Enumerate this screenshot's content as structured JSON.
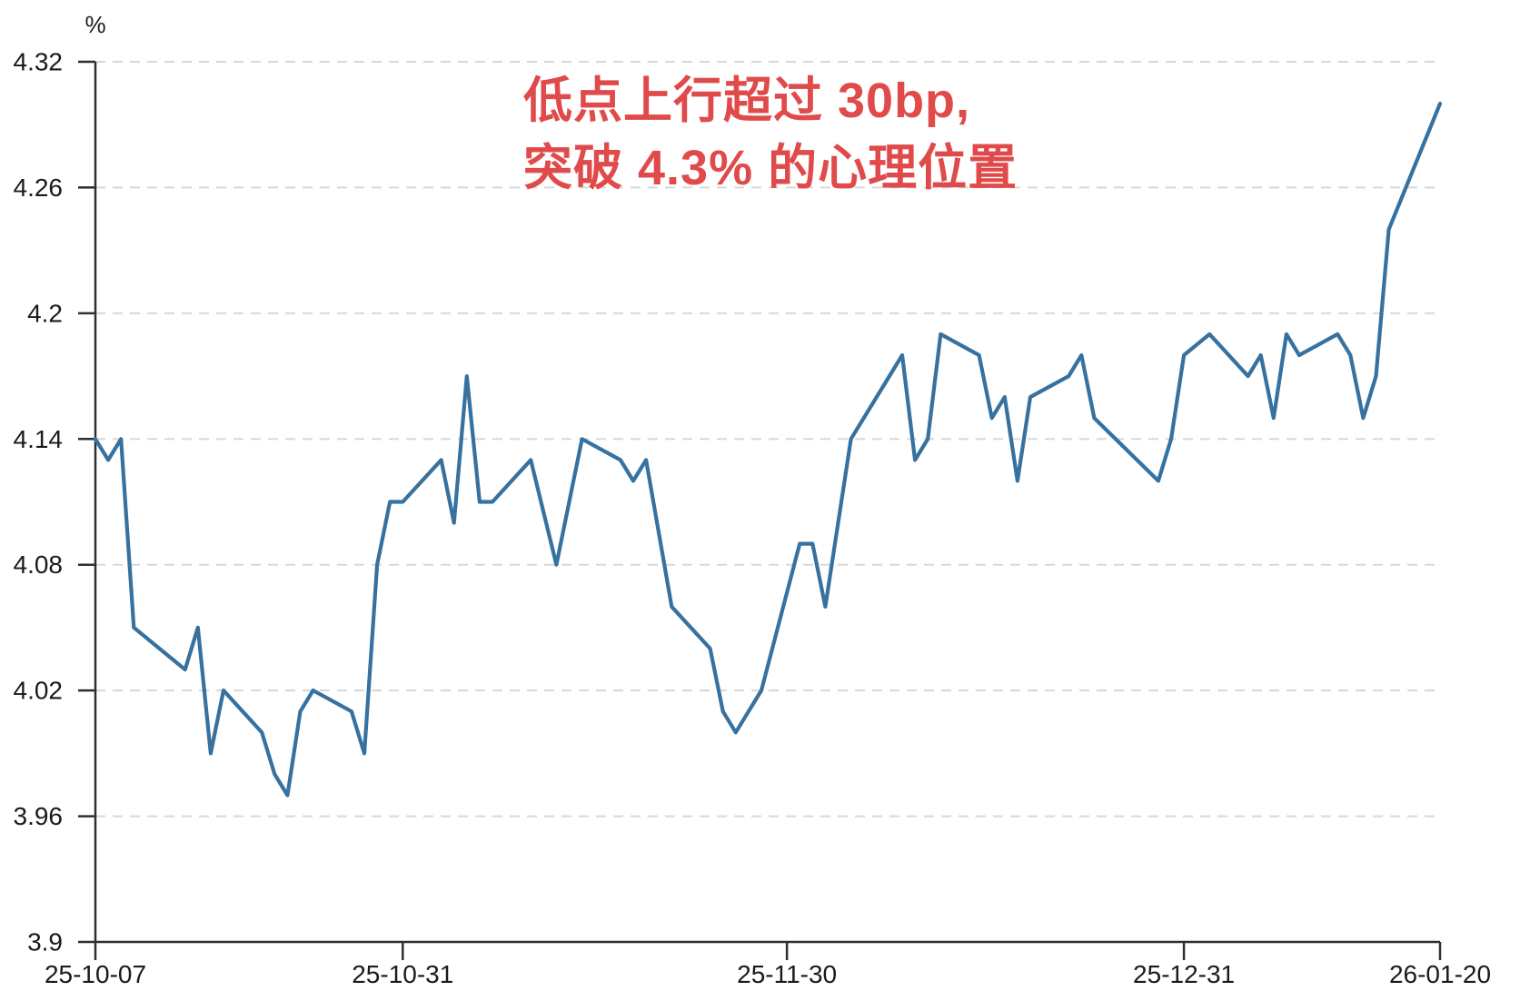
{
  "chart_data": {
    "type": "line",
    "title": "",
    "unit_label": "%",
    "line_color": "#36719F",
    "grid_color": "#d8d8d8",
    "axis_color": "#2f2f2f",
    "ylim": [
      3.9,
      4.32
    ],
    "grid": "dashed-horizontal",
    "y_ticks": [
      {
        "label": "4.32",
        "v": 4.32
      },
      {
        "label": "4.26",
        "v": 4.26
      },
      {
        "label": "4.2",
        "v": 4.2
      },
      {
        "label": "4.14",
        "v": 4.14
      },
      {
        "label": "4.08",
        "v": 4.08
      },
      {
        "label": "4.02",
        "v": 4.02
      },
      {
        "label": "3.96",
        "v": 3.96
      },
      {
        "label": "3.9",
        "v": 3.9
      }
    ],
    "x_ticks": [
      {
        "label": "25-10-07",
        "d": 0
      },
      {
        "label": "25-10-31",
        "d": 24
      },
      {
        "label": "25-11-30",
        "d": 54
      },
      {
        "label": "25-12-31",
        "d": 85
      },
      {
        "label": "26-01-20",
        "d": 105
      }
    ],
    "x_axis_note": "d = calendar days since 2025-10-07; weekends/holidays bridged by straight segments",
    "points": [
      {
        "d": 0,
        "v": 4.14
      },
      {
        "d": 1,
        "v": 4.13
      },
      {
        "d": 2,
        "v": 4.14
      },
      {
        "d": 3,
        "v": 4.05
      },
      {
        "d": 7,
        "v": 4.03
      },
      {
        "d": 8,
        "v": 4.05
      },
      {
        "d": 9,
        "v": 3.99
      },
      {
        "d": 10,
        "v": 4.02
      },
      {
        "d": 13,
        "v": 4.0
      },
      {
        "d": 14,
        "v": 3.98
      },
      {
        "d": 15,
        "v": 3.97
      },
      {
        "d": 16,
        "v": 4.01
      },
      {
        "d": 17,
        "v": 4.02
      },
      {
        "d": 20,
        "v": 4.01
      },
      {
        "d": 21,
        "v": 3.99
      },
      {
        "d": 22,
        "v": 4.08
      },
      {
        "d": 23,
        "v": 4.11
      },
      {
        "d": 24,
        "v": 4.11
      },
      {
        "d": 27,
        "v": 4.13
      },
      {
        "d": 28,
        "v": 4.1
      },
      {
        "d": 29,
        "v": 4.17
      },
      {
        "d": 30,
        "v": 4.11
      },
      {
        "d": 31,
        "v": 4.11
      },
      {
        "d": 34,
        "v": 4.13
      },
      {
        "d": 36,
        "v": 4.08
      },
      {
        "d": 38,
        "v": 4.14
      },
      {
        "d": 41,
        "v": 4.13
      },
      {
        "d": 42,
        "v": 4.12
      },
      {
        "d": 43,
        "v": 4.13
      },
      {
        "d": 45,
        "v": 4.06
      },
      {
        "d": 48,
        "v": 4.04
      },
      {
        "d": 49,
        "v": 4.01
      },
      {
        "d": 50,
        "v": 4.0
      },
      {
        "d": 52,
        "v": 4.02
      },
      {
        "d": 55,
        "v": 4.09
      },
      {
        "d": 56,
        "v": 4.09
      },
      {
        "d": 57,
        "v": 4.06
      },
      {
        "d": 59,
        "v": 4.14
      },
      {
        "d": 62,
        "v": 4.17
      },
      {
        "d": 63,
        "v": 4.18
      },
      {
        "d": 64,
        "v": 4.13
      },
      {
        "d": 65,
        "v": 4.14
      },
      {
        "d": 66,
        "v": 4.19
      },
      {
        "d": 69,
        "v": 4.18
      },
      {
        "d": 70,
        "v": 4.15
      },
      {
        "d": 71,
        "v": 4.16
      },
      {
        "d": 72,
        "v": 4.12
      },
      {
        "d": 73,
        "v": 4.16
      },
      {
        "d": 76,
        "v": 4.17
      },
      {
        "d": 77,
        "v": 4.18
      },
      {
        "d": 78,
        "v": 4.15
      },
      {
        "d": 83,
        "v": 4.12
      },
      {
        "d": 84,
        "v": 4.14
      },
      {
        "d": 85,
        "v": 4.18
      },
      {
        "d": 87,
        "v": 4.19
      },
      {
        "d": 90,
        "v": 4.17
      },
      {
        "d": 91,
        "v": 4.18
      },
      {
        "d": 92,
        "v": 4.15
      },
      {
        "d": 93,
        "v": 4.19
      },
      {
        "d": 94,
        "v": 4.18
      },
      {
        "d": 97,
        "v": 4.19
      },
      {
        "d": 98,
        "v": 4.18
      },
      {
        "d": 99,
        "v": 4.15
      },
      {
        "d": 100,
        "v": 4.17
      },
      {
        "d": 101,
        "v": 4.24
      },
      {
        "d": 105,
        "v": 4.3
      }
    ],
    "annotation": {
      "line1": "低点上行超过 30bp,",
      "line2": "突破 4.3% 的心理位置",
      "color": "#E04A4A"
    }
  }
}
